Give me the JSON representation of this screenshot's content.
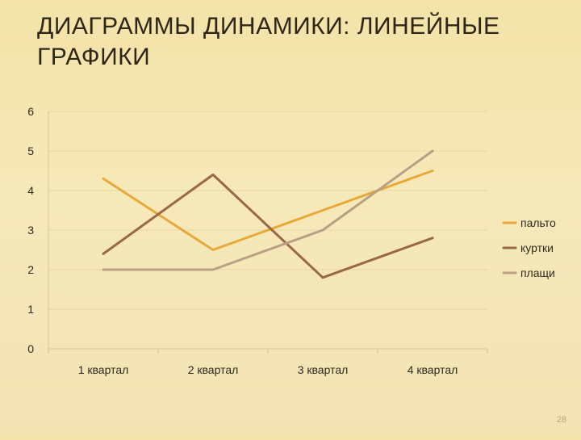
{
  "slide": {
    "title": "ДИАГРАММЫ ДИНАМИКИ: ЛИНЕЙНЫЕ ГРАФИКИ",
    "page_number": "28"
  },
  "chart_data": {
    "type": "line",
    "categories": [
      "1 квартал",
      "2 квартал",
      "3 квартал",
      "4 квартал"
    ],
    "series": [
      {
        "name": "пальто",
        "values": [
          4.3,
          2.5,
          3.5,
          4.5
        ],
        "color": "#e9a93a"
      },
      {
        "name": "куртки",
        "values": [
          2.4,
          4.4,
          1.8,
          2.8
        ],
        "color": "#9a6846"
      },
      {
        "name": "плащи",
        "values": [
          2.0,
          2.0,
          3.0,
          5.0
        ],
        "color": "#b9a084"
      }
    ],
    "ylim": [
      0,
      6
    ],
    "yticks": [
      0,
      1,
      2,
      3,
      4,
      5,
      6
    ],
    "grid": true,
    "legend_position": "right"
  }
}
